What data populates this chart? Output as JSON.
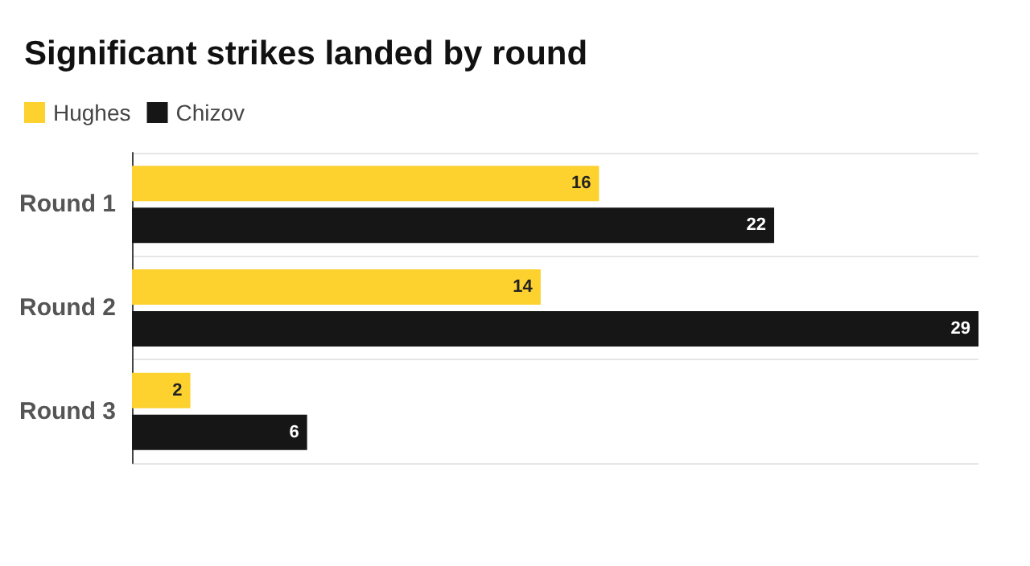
{
  "chart_data": {
    "type": "bar",
    "orientation": "horizontal",
    "title": "Significant strikes landed by round",
    "categories": [
      "Round 1",
      "Round 2",
      "Round 3"
    ],
    "series": [
      {
        "name": "Hughes",
        "color": "#fdd12e",
        "values": [
          16,
          14,
          2
        ]
      },
      {
        "name": "Chizov",
        "color": "#161616",
        "values": [
          22,
          29,
          6
        ]
      }
    ],
    "data_labels": true,
    "legend": "top left",
    "grid": "y"
  }
}
